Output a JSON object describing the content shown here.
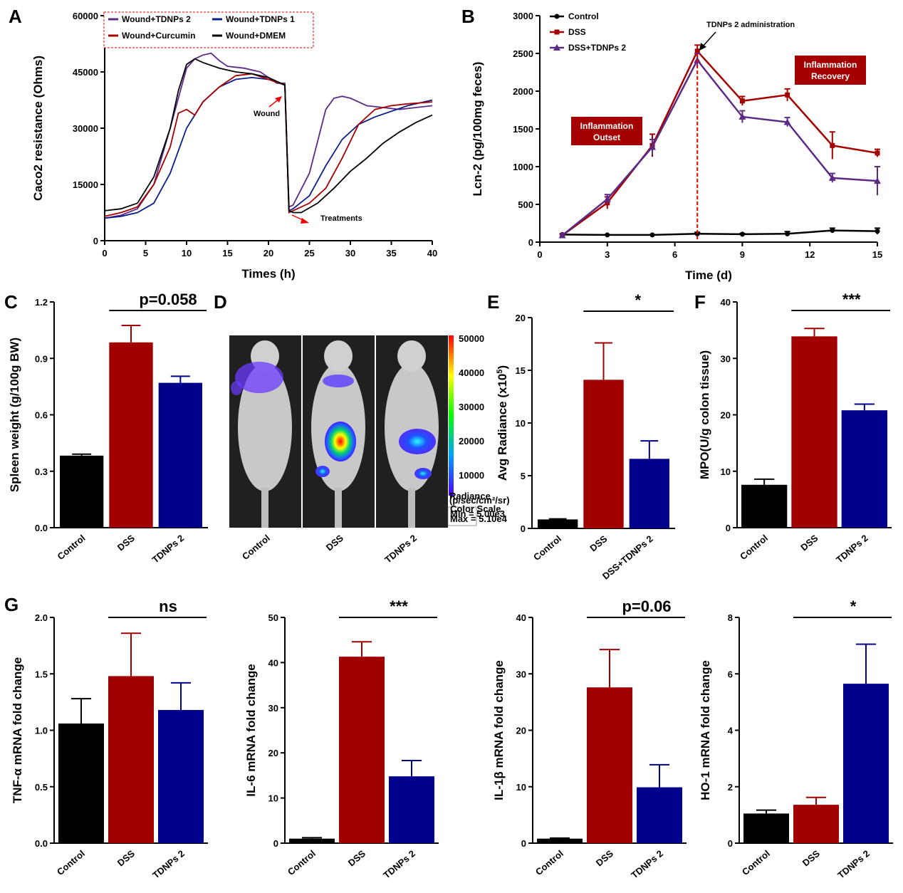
{
  "panels": [
    {
      "id": "A",
      "label": "A",
      "chart_data": {
        "type": "line",
        "xlabel": "Times (h)",
        "ylabel": "Caco2 resistance (Ohms)",
        "xlim": [
          0,
          40
        ],
        "ylim": [
          0,
          60000
        ],
        "xticks": [
          0,
          5,
          10,
          15,
          20,
          25,
          30,
          35,
          40
        ],
        "yticks": [
          0,
          15000,
          30000,
          45000,
          60000
        ],
        "legend_position": "top-center",
        "annotations": [
          {
            "text": "Wound",
            "x": 22,
            "y": 34000
          },
          {
            "text": "Treatments",
            "x": 26,
            "y": 5500
          }
        ],
        "series": [
          {
            "name": "Wound+TDNPs 2",
            "color": "#5b2a86",
            "x": [
              0,
              2,
              4,
              6,
              8,
              10,
              11,
              12,
              13,
              14,
              15,
              17,
              19,
              21,
              22,
              22.5,
              23,
              25,
              27,
              28,
              29,
              30,
              32,
              34,
              36,
              38,
              40
            ],
            "y": [
              6000,
              6800,
              8500,
              15000,
              30000,
              46000,
              48500,
              49500,
              50000,
              48000,
              46500,
              46000,
              45000,
              42000,
              42000,
              9000,
              9500,
              18000,
              35000,
              38000,
              38500,
              38000,
              36000,
              35500,
              35000,
              35500,
              36000
            ]
          },
          {
            "name": "Wound+TDNPs 1",
            "color": "#0b1e88",
            "x": [
              0,
              2,
              4,
              6,
              8,
              10,
              12,
              14,
              16,
              18,
              20,
              22,
              22.5,
              23,
              25,
              27,
              29,
              31,
              33,
              35,
              37,
              40
            ],
            "y": [
              6000,
              6500,
              7500,
              10000,
              18000,
              30000,
              37000,
              41000,
              43000,
              43500,
              43000,
              41500,
              8000,
              8500,
              12000,
              20000,
              27000,
              31000,
              33000,
              34500,
              36000,
              37500
            ]
          },
          {
            "name": "Wound+Curcumin",
            "color": "#a50000",
            "x": [
              0,
              2,
              4,
              6,
              8,
              9,
              10,
              11,
              12,
              14,
              16,
              18,
              20,
              22,
              22.5,
              23,
              25,
              27,
              29,
              31,
              33,
              35,
              37,
              40
            ],
            "y": [
              6500,
              7500,
              9000,
              15000,
              25000,
              34000,
              35000,
              33500,
              37000,
              41000,
              44000,
              44500,
              43000,
              41500,
              7500,
              8000,
              10000,
              14000,
              22000,
              31000,
              35000,
              36000,
              36500,
              37000
            ]
          },
          {
            "name": "Wound+DMEM",
            "color": "#000000",
            "x": [
              0,
              2,
              4,
              6,
              8,
              9,
              10,
              11,
              12,
              14,
              16,
              18,
              20,
              22,
              22.5,
              23,
              24,
              26,
              28,
              30,
              32,
              34,
              36,
              38,
              40
            ],
            "y": [
              8000,
              8500,
              10000,
              17000,
              30000,
              40000,
              47000,
              48500,
              47500,
              46000,
              45000,
              44500,
              43500,
              41500,
              8000,
              7500,
              7500,
              10000,
              14000,
              18500,
              22000,
              26000,
              29000,
              31500,
              33500
            ]
          }
        ]
      }
    },
    {
      "id": "B",
      "label": "B",
      "chart_data": {
        "type": "line",
        "xlabel": "Time (d)",
        "ylabel": "Lcn-2 (pg/100mg feces)",
        "xlim": [
          0,
          15
        ],
        "ylim": [
          0,
          3000
        ],
        "xticks": [
          0,
          3,
          6,
          9,
          12,
          15
        ],
        "yticks": [
          0,
          500,
          1000,
          1500,
          2000,
          2500,
          3000
        ],
        "legend_position": "top-left",
        "annotations": [
          {
            "text": "TDNPs 2 administration",
            "x": 7,
            "y": 2500
          },
          {
            "text": "Inflammation Outset",
            "box": true
          },
          {
            "text": "Inflammation Recovery",
            "box": true
          }
        ],
        "series": [
          {
            "name": "Control",
            "color": "#000000",
            "marker": "circle",
            "x": [
              1,
              3,
              5,
              7,
              9,
              11,
              13,
              15
            ],
            "y": [
              100,
              95,
              95,
              110,
              105,
              110,
              155,
              145
            ],
            "err": [
              5,
              5,
              5,
              20,
              10,
              30,
              30,
              40
            ]
          },
          {
            "name": "DSS",
            "color": "#a50000",
            "marker": "square",
            "x": [
              1,
              3,
              5,
              7,
              9,
              11,
              13,
              15
            ],
            "y": [
              90,
              520,
              1280,
              2530,
              1870,
              1950,
              1280,
              1180
            ],
            "err": [
              20,
              80,
              150,
              80,
              60,
              80,
              180,
              50
            ]
          },
          {
            "name": "DSS+TDNPs 2",
            "color": "#5b2a86",
            "marker": "triangle",
            "x": [
              1,
              3,
              5,
              7,
              9,
              11,
              13,
              15
            ],
            "y": [
              90,
              570,
              1260,
              2410,
              1660,
              1590,
              850,
              810
            ],
            "err": [
              20,
              60,
              100,
              90,
              80,
              60,
              60,
              190
            ]
          }
        ]
      }
    },
    {
      "id": "C",
      "label": "C",
      "chart_data": {
        "type": "bar",
        "ylabel": "Spleen weight (g/100g BW)",
        "categories": [
          "Control",
          "DSS",
          "TDNPs 2"
        ],
        "values": [
          0.383,
          0.985,
          0.77
        ],
        "errors": [
          0.008,
          0.09,
          0.035
        ],
        "ylim": [
          0,
          1.2
        ],
        "yticks": [
          "0.0",
          "0.3",
          "0.6",
          "0.9",
          "1.2"
        ],
        "significance": "p=0.058"
      }
    },
    {
      "id": "D",
      "label": "D",
      "image_labels": [
        "Control",
        "DSS",
        "TDNPs 2"
      ]
    },
    {
      "id": "E",
      "label": "E",
      "chart_data": {
        "type": "bar",
        "ylabel": "Avg Radiance (x10",
        "ylabel_sup": "5",
        "ylabel_end": ")",
        "categories": [
          "Control",
          "DSS",
          "DSS+TDNPs 2"
        ],
        "values": [
          0.85,
          14.1,
          6.6
        ],
        "errors": [
          0.05,
          3.5,
          1.7
        ],
        "ylim": [
          0,
          20
        ],
        "yticks": [
          "0",
          "5",
          "10",
          "15",
          "20"
        ],
        "significance": "*"
      }
    },
    {
      "id": "F",
      "label": "F",
      "chart_data": {
        "type": "bar",
        "ylabel": "MPO(U/g colon tissue)",
        "categories": [
          "Control",
          "DSS",
          "TDNPs 2"
        ],
        "values": [
          7.6,
          33.9,
          20.8
        ],
        "errors": [
          1.0,
          1.4,
          1.1
        ],
        "ylim": [
          0,
          40
        ],
        "yticks": [
          "0",
          "10",
          "20",
          "30",
          "40"
        ],
        "significance": "***"
      }
    },
    {
      "id": "G1",
      "label": "G",
      "chart_data": {
        "type": "bar",
        "ylabel": "TNF-α mRNA fold change",
        "categories": [
          "Control",
          "DSS",
          "TDNPs 2"
        ],
        "values": [
          1.06,
          1.48,
          1.18
        ],
        "errors": [
          0.22,
          0.38,
          0.24
        ],
        "ylim": [
          0,
          2.0
        ],
        "yticks": [
          "0.0",
          "0.5",
          "1.0",
          "1.5",
          "2.0"
        ],
        "significance": "ns"
      }
    },
    {
      "id": "G2",
      "label": "",
      "chart_data": {
        "type": "bar",
        "ylabel": "IL-6 mRNA fold change",
        "categories": [
          "Control",
          "DSS",
          "TDNPs 2"
        ],
        "values": [
          1.0,
          41.3,
          14.8
        ],
        "errors": [
          0.2,
          3.3,
          3.5
        ],
        "ylim": [
          0,
          50
        ],
        "yticks": [
          "0",
          "10",
          "20",
          "30",
          "40",
          "50"
        ],
        "significance": "***"
      }
    },
    {
      "id": "G3",
      "label": "",
      "chart_data": {
        "type": "bar",
        "ylabel": "IL-1β mRNA fold change",
        "categories": [
          "Control",
          "DSS",
          "TDNPs 2"
        ],
        "values": [
          0.8,
          27.6,
          9.9
        ],
        "errors": [
          0.1,
          6.7,
          4.0
        ],
        "ylim": [
          0,
          40
        ],
        "yticks": [
          "0",
          "10",
          "20",
          "30",
          "40"
        ],
        "significance": "p=0.06"
      }
    },
    {
      "id": "G4",
      "label": "",
      "chart_data": {
        "type": "bar",
        "ylabel": "HO-1 mRNA fold change",
        "categories": [
          "Control",
          "DSS",
          "TDNPs 2"
        ],
        "values": [
          1.05,
          1.36,
          5.65
        ],
        "errors": [
          0.12,
          0.26,
          1.4
        ],
        "ylim": [
          0,
          8
        ],
        "yticks": [
          "0",
          "2",
          "4",
          "6",
          "8"
        ],
        "significance": "*"
      }
    }
  ],
  "bar_colors": [
    "#000000",
    "#a00000",
    "#00008b"
  ],
  "colorbar": {
    "ticks": [
      "50000",
      "40000",
      "30000",
      "20000",
      "10000"
    ],
    "title": "Radiance",
    "unit": "(p/sec/cm²/sr)",
    "scale_lines": [
      "Color Scale",
      "Min = 5.00e3",
      "Max = 5.10e4"
    ]
  }
}
